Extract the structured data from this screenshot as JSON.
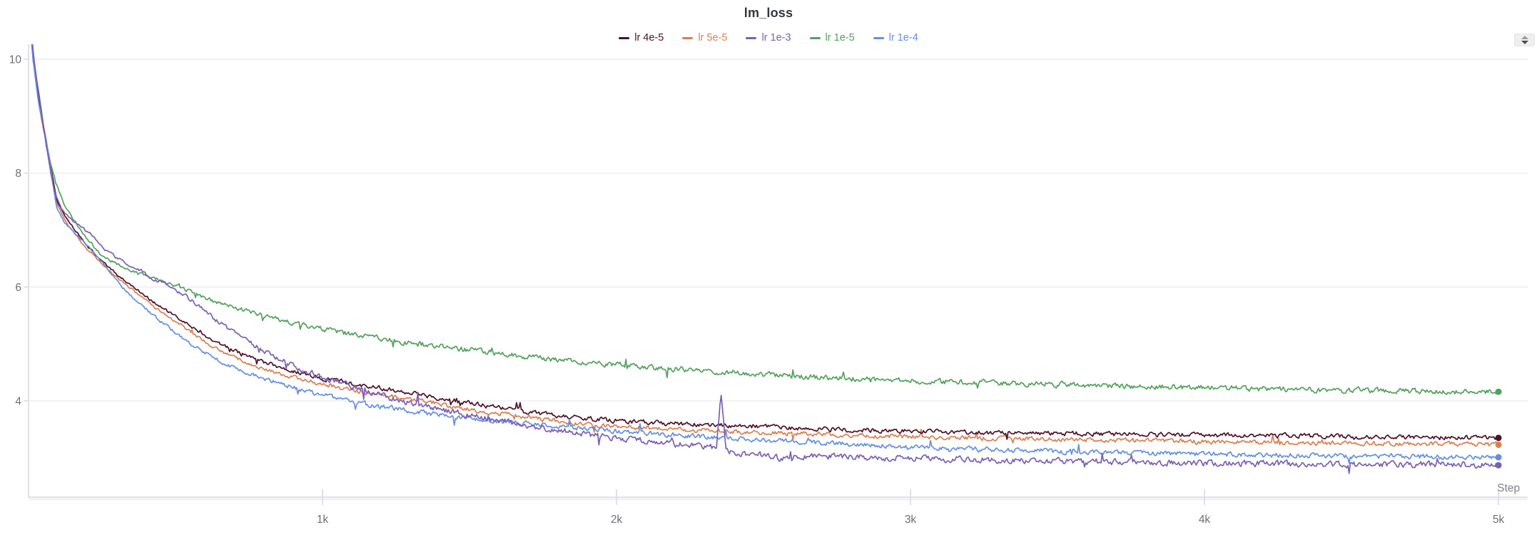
{
  "chart_data": {
    "type": "line",
    "title": "lm_loss",
    "xlabel": "Step",
    "ylabel": "",
    "x_ticks": [
      {
        "value": 1000,
        "label": "1k"
      },
      {
        "value": 2000,
        "label": "2k"
      },
      {
        "value": 3000,
        "label": "3k"
      },
      {
        "value": 4000,
        "label": "4k"
      },
      {
        "value": 5000,
        "label": "5k"
      }
    ],
    "y_ticks": [
      {
        "value": 10,
        "label": "10"
      },
      {
        "value": 8,
        "label": "8"
      },
      {
        "value": 6,
        "label": "6"
      },
      {
        "value": 4,
        "label": "4"
      }
    ],
    "xlim": [
      0,
      5100
    ],
    "ylim": [
      2.31,
      10.26
    ],
    "grid": "horizontal",
    "legend_position": "top-center",
    "series": [
      {
        "name": "lr 4e-5",
        "color": "#4e1125",
        "end_value": 3.35,
        "noise": 0.028,
        "points": [
          [
            0,
            11
          ],
          [
            16,
            10
          ],
          [
            40,
            9.1
          ],
          [
            65,
            8.4
          ],
          [
            97,
            7.5
          ],
          [
            130,
            7.2
          ],
          [
            165,
            6.95
          ],
          [
            200,
            6.72
          ],
          [
            250,
            6.45
          ],
          [
            310,
            6.18
          ],
          [
            370,
            5.95
          ],
          [
            430,
            5.72
          ],
          [
            500,
            5.48
          ],
          [
            570,
            5.25
          ],
          [
            631,
            5.05
          ],
          [
            700,
            4.88
          ],
          [
            800,
            4.68
          ],
          [
            900,
            4.52
          ],
          [
            1000,
            4.4
          ],
          [
            1130,
            4.28
          ],
          [
            1262,
            4.18
          ],
          [
            1400,
            4.05
          ],
          [
            1550,
            3.92
          ],
          [
            1700,
            3.8
          ],
          [
            1880,
            3.7
          ],
          [
            2000,
            3.65
          ],
          [
            2200,
            3.6
          ],
          [
            2400,
            3.56
          ],
          [
            2600,
            3.52
          ],
          [
            2800,
            3.49
          ],
          [
            3000,
            3.47
          ],
          [
            3300,
            3.44
          ],
          [
            3600,
            3.42
          ],
          [
            4000,
            3.4
          ],
          [
            4400,
            3.38
          ],
          [
            4700,
            3.36
          ],
          [
            5000,
            3.35
          ]
        ]
      },
      {
        "name": "lr 5e-5",
        "color": "#d9804e",
        "end_value": 3.23,
        "noise": 0.028,
        "points": [
          [
            0,
            11
          ],
          [
            18,
            10
          ],
          [
            42,
            9.0
          ],
          [
            68,
            8.3
          ],
          [
            97,
            7.45
          ],
          [
            130,
            7.12
          ],
          [
            165,
            6.88
          ],
          [
            200,
            6.66
          ],
          [
            250,
            6.4
          ],
          [
            310,
            6.12
          ],
          [
            370,
            5.88
          ],
          [
            430,
            5.64
          ],
          [
            500,
            5.4
          ],
          [
            570,
            5.14
          ],
          [
            631,
            4.94
          ],
          [
            700,
            4.76
          ],
          [
            800,
            4.56
          ],
          [
            900,
            4.41
          ],
          [
            1000,
            4.29
          ],
          [
            1130,
            4.16
          ],
          [
            1262,
            4.06
          ],
          [
            1400,
            3.93
          ],
          [
            1550,
            3.81
          ],
          [
            1700,
            3.71
          ],
          [
            1880,
            3.59
          ],
          [
            2000,
            3.55
          ],
          [
            2200,
            3.5
          ],
          [
            2400,
            3.46
          ],
          [
            2700,
            3.41
          ],
          [
            3000,
            3.37
          ],
          [
            3400,
            3.33
          ],
          [
            3800,
            3.3
          ],
          [
            4200,
            3.27
          ],
          [
            4600,
            3.25
          ],
          [
            5000,
            3.23
          ]
        ]
      },
      {
        "name": "lr 1e-3",
        "color": "#7a5fb5",
        "end_value": 2.87,
        "noise": 0.038,
        "points": [
          [
            0,
            11
          ],
          [
            18,
            10
          ],
          [
            40,
            9.2
          ],
          [
            60,
            8.5
          ],
          [
            75,
            8.0
          ],
          [
            92,
            7.62
          ],
          [
            115,
            7.35
          ],
          [
            146,
            7.17
          ],
          [
            206,
            6.95
          ],
          [
            274,
            6.6
          ],
          [
            316,
            6.46
          ],
          [
            369,
            6.33
          ],
          [
            413,
            6.17
          ],
          [
            461,
            6.07
          ],
          [
            540,
            5.82
          ],
          [
            631,
            5.45
          ],
          [
            720,
            5.12
          ],
          [
            810,
            4.85
          ],
          [
            900,
            4.62
          ],
          [
            1000,
            4.42
          ],
          [
            1100,
            4.25
          ],
          [
            1200,
            4.1
          ],
          [
            1300,
            3.96
          ],
          [
            1430,
            3.82
          ],
          [
            1550,
            3.7
          ],
          [
            1700,
            3.57
          ],
          [
            1880,
            3.42
          ],
          [
            2000,
            3.35
          ],
          [
            2120,
            3.28
          ],
          [
            2250,
            3.22
          ],
          [
            2340,
            3.18
          ],
          [
            2356,
            4.12
          ],
          [
            2372,
            3.13
          ],
          [
            2450,
            3.07
          ],
          [
            2550,
            3.0
          ],
          [
            2700,
            3.03
          ],
          [
            2900,
            3.0
          ],
          [
            3100,
            2.98
          ],
          [
            3400,
            2.95
          ],
          [
            3700,
            2.93
          ],
          [
            4000,
            2.91
          ],
          [
            4300,
            2.89
          ],
          [
            4600,
            2.88
          ],
          [
            5000,
            2.87
          ]
        ]
      },
      {
        "name": "lr 1e-5",
        "color": "#52a15c",
        "end_value": 4.16,
        "noise": 0.034,
        "points": [
          [
            0,
            11
          ],
          [
            15,
            10
          ],
          [
            35,
            9.4
          ],
          [
            55,
            8.7
          ],
          [
            73,
            8.2
          ],
          [
            95,
            7.8
          ],
          [
            121,
            7.45
          ],
          [
            182,
            6.95
          ],
          [
            250,
            6.55
          ],
          [
            310,
            6.38
          ],
          [
            371,
            6.25
          ],
          [
            430,
            6.14
          ],
          [
            493,
            6.03
          ],
          [
            560,
            5.9
          ],
          [
            631,
            5.75
          ],
          [
            728,
            5.6
          ],
          [
            850,
            5.42
          ],
          [
            1000,
            5.26
          ],
          [
            1130,
            5.14
          ],
          [
            1262,
            5.04
          ],
          [
            1450,
            4.92
          ],
          [
            1650,
            4.8
          ],
          [
            1880,
            4.68
          ],
          [
            2100,
            4.6
          ],
          [
            2300,
            4.52
          ],
          [
            2500,
            4.46
          ],
          [
            2700,
            4.41
          ],
          [
            2900,
            4.37
          ],
          [
            3100,
            4.34
          ],
          [
            3400,
            4.3
          ],
          [
            3700,
            4.26
          ],
          [
            4000,
            4.23
          ],
          [
            4300,
            4.2
          ],
          [
            4600,
            4.18
          ],
          [
            5000,
            4.16
          ]
        ]
      },
      {
        "name": "lr 1e-4",
        "color": "#648fe0",
        "end_value": 3.01,
        "noise": 0.03,
        "points": [
          [
            0,
            11
          ],
          [
            15,
            10
          ],
          [
            35,
            9.2
          ],
          [
            60,
            8.6
          ],
          [
            95,
            7.4
          ],
          [
            120,
            7.15
          ],
          [
            160,
            6.92
          ],
          [
            210,
            6.68
          ],
          [
            260,
            6.38
          ],
          [
            320,
            6.0
          ],
          [
            390,
            5.65
          ],
          [
            460,
            5.35
          ],
          [
            530,
            5.08
          ],
          [
            600,
            4.85
          ],
          [
            680,
            4.62
          ],
          [
            770,
            4.44
          ],
          [
            870,
            4.28
          ],
          [
            970,
            4.14
          ],
          [
            1080,
            4.01
          ],
          [
            1200,
            3.9
          ],
          [
            1330,
            3.8
          ],
          [
            1470,
            3.71
          ],
          [
            1600,
            3.64
          ],
          [
            1700,
            3.6
          ],
          [
            1880,
            3.52
          ],
          [
            2000,
            3.47
          ],
          [
            2150,
            3.42
          ],
          [
            2300,
            3.37
          ],
          [
            2500,
            3.31
          ],
          [
            2700,
            3.26
          ],
          [
            3000,
            3.19
          ],
          [
            3300,
            3.14
          ],
          [
            3600,
            3.1
          ],
          [
            3900,
            3.07
          ],
          [
            4200,
            3.05
          ],
          [
            4500,
            3.03
          ],
          [
            5000,
            3.01
          ]
        ]
      }
    ]
  },
  "controls": {
    "stepper_tooltip": "collapse-expand-panel"
  },
  "style": {
    "grid_color": "#ededf0",
    "axis_color": "#e2e2e6",
    "tick_color": "#d9d9de",
    "tick_label_color": "#6e6e76",
    "step_label_color": "#81818a",
    "title_color": "#32363e"
  }
}
